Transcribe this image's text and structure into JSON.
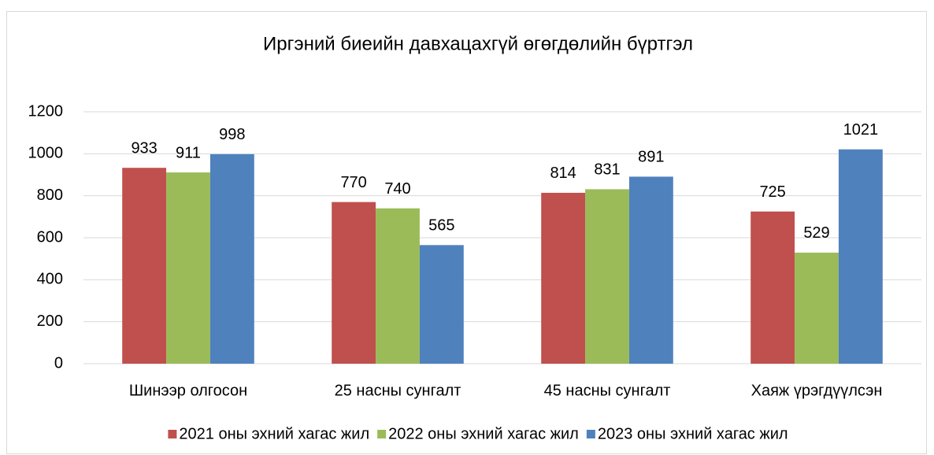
{
  "chart_data": {
    "type": "bar",
    "title": "Иргэний биеийн давхацахгүй өгөгдөлийн бүртгэл",
    "categories": [
      "Шинээр олгосон",
      "25 насны сунгалт",
      "45 насны сунгалт",
      "Хаяж үрэгдүүлсэн"
    ],
    "series": [
      {
        "name": "2021 оны эхний хагас жил",
        "color": "#c0504d",
        "values": [
          933,
          770,
          814,
          725
        ]
      },
      {
        "name": "2022 оны эхний хагас жил",
        "color": "#9bbb59",
        "values": [
          911,
          740,
          831,
          529
        ]
      },
      {
        "name": "2023 оны эхний хагас жил",
        "color": "#4f81bd",
        "values": [
          998,
          565,
          891,
          1021
        ]
      }
    ],
    "ylim": [
      0,
      1200
    ],
    "yticks": [
      0,
      200,
      400,
      600,
      800,
      1000,
      1200
    ],
    "grid": true,
    "legend": "bottom"
  }
}
